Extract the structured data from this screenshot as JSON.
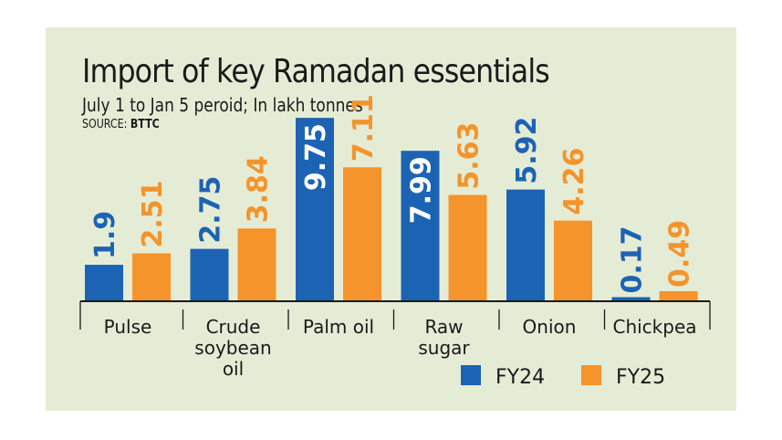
{
  "header": {
    "title": "Import of key Ramadan essentials",
    "subtitle": "July 1 to Jan 5 peroid; In lakh tonnes",
    "source_label": "SOURCE:",
    "source_value": "BTTC"
  },
  "colors": {
    "panel": "#e5ecd6",
    "fy24": "#1d63b4",
    "fy25": "#f4942b",
    "text": "#1a1a1a"
  },
  "chart_data": {
    "type": "bar",
    "title": "Import of key Ramadan essentials",
    "subtitle": "July 1 to Jan 5 peroid; In lakh tonnes",
    "categories": [
      "Pulse",
      "Crude soybean oil",
      "Palm oil",
      "Raw sugar",
      "Onion",
      "Chickpea"
    ],
    "category_lines": [
      [
        "Pulse"
      ],
      [
        "Crude",
        "soybean",
        "oil"
      ],
      [
        "Palm oil"
      ],
      [
        "Raw",
        "sugar"
      ],
      [
        "Onion"
      ],
      [
        "Chickpea"
      ]
    ],
    "series": [
      {
        "name": "FY24",
        "values": [
          1.9,
          2.75,
          9.75,
          7.99,
          5.92,
          0.17
        ],
        "labels": [
          "1.9",
          "2.75",
          "9.75",
          "7.99",
          "5.92",
          "0.17"
        ],
        "color": "#1d63b4"
      },
      {
        "name": "FY25",
        "values": [
          2.51,
          3.84,
          7.11,
          5.63,
          4.26,
          0.49
        ],
        "labels": [
          "2.51",
          "3.84",
          "7.11",
          "5.63",
          "4.26",
          "0.49"
        ],
        "color": "#f4942b"
      }
    ],
    "ylim": [
      0,
      10
    ],
    "grid": false,
    "legend_position": "bottom-right",
    "data_labels": "vertical, above bars"
  }
}
